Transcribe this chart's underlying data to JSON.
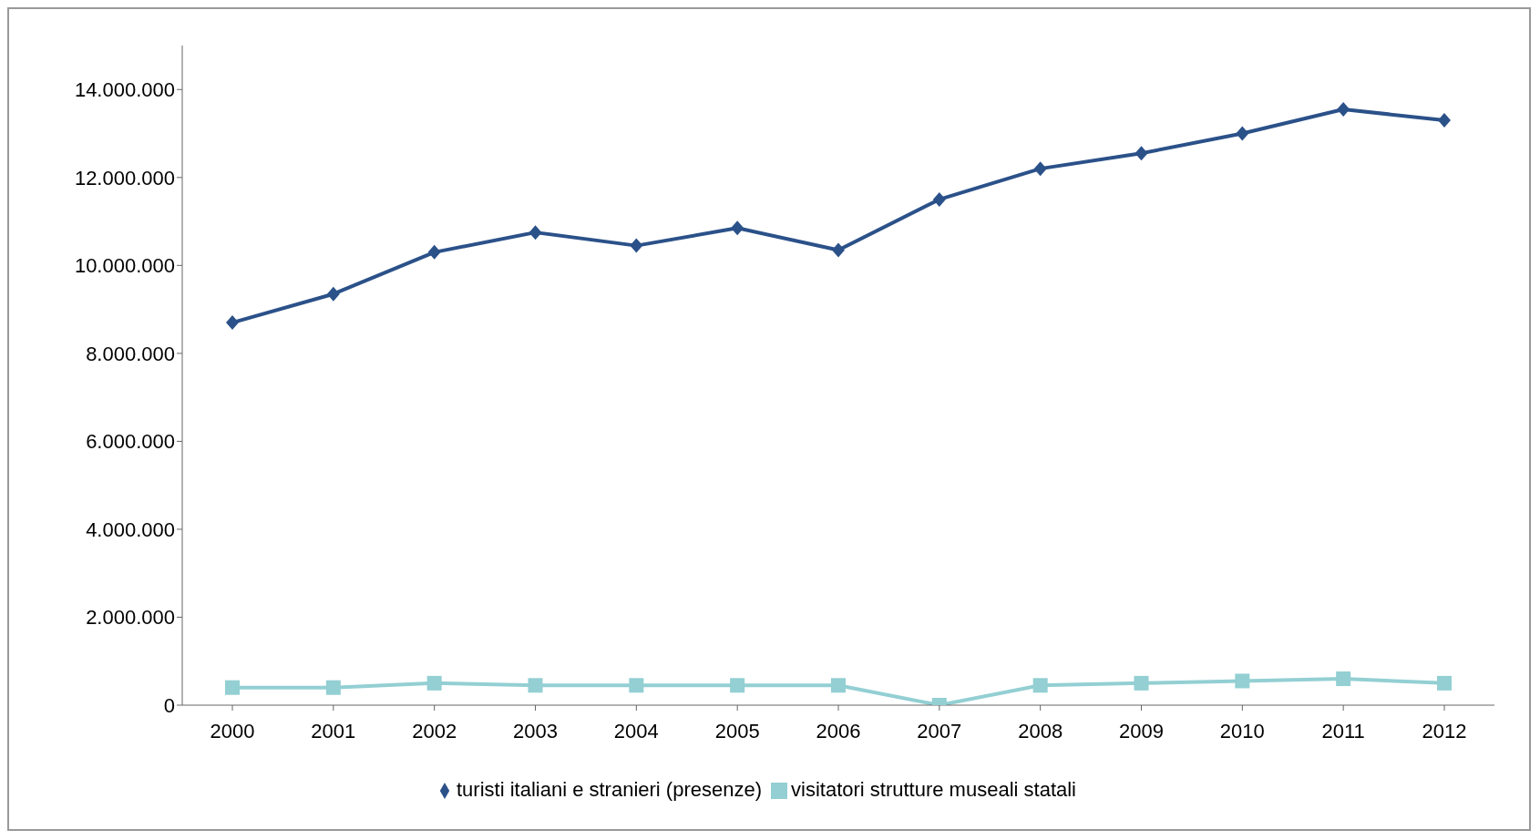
{
  "chart_data": {
    "type": "line",
    "categories": [
      "2000",
      "2001",
      "2002",
      "2003",
      "2004",
      "2005",
      "2006",
      "2007",
      "2008",
      "2009",
      "2010",
      "2011",
      "2012"
    ],
    "series": [
      {
        "name": "turisti italiani e stranieri (presenze)",
        "color": "#2b5189",
        "marker": "diamond",
        "values": [
          8700000,
          9350000,
          10300000,
          10750000,
          10450000,
          10850000,
          10350000,
          11500000,
          12200000,
          12550000,
          13000000,
          13550000,
          13300000
        ]
      },
      {
        "name": "visitatori strutture museali statali",
        "color": "#93cfd3",
        "marker": "square",
        "values": [
          400000,
          400000,
          500000,
          450000,
          450000,
          450000,
          450000,
          0,
          450000,
          500000,
          550000,
          600000,
          500000
        ]
      }
    ],
    "ylim": [
      0,
      15000000
    ],
    "yticks": [
      {
        "value": 0,
        "label": "0"
      },
      {
        "value": 2000000,
        "label": "2.000.000"
      },
      {
        "value": 4000000,
        "label": "4.000.000"
      },
      {
        "value": 6000000,
        "label": "6.000.000"
      },
      {
        "value": 8000000,
        "label": "8.000.000"
      },
      {
        "value": 10000000,
        "label": "10.000.000"
      },
      {
        "value": 12000000,
        "label": "12.000.000"
      },
      {
        "value": 14000000,
        "label": "14.000.000"
      }
    ],
    "grid": false,
    "legend": "bottom",
    "line_style": "solid"
  }
}
